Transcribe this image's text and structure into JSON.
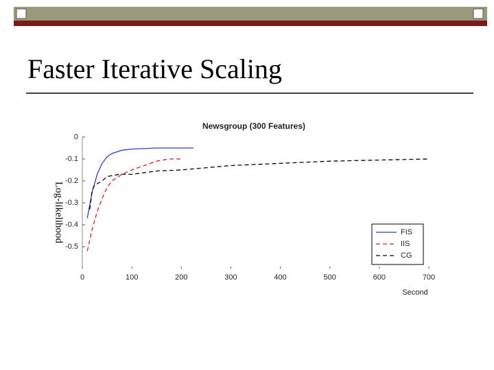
{
  "slide_title": "Faster Iterative Scaling",
  "chart_data": {
    "type": "line",
    "title": "Newsgroup (300 Features)",
    "x_label": "Second",
    "y_label": "Log-likelihood",
    "xlim": [
      0,
      700
    ],
    "xticks": [
      0,
      100,
      200,
      300,
      400,
      500,
      600,
      700
    ],
    "ylim": [
      -0.6,
      0
    ],
    "yticks": [
      0,
      -0.1,
      -0.2,
      -0.3,
      -0.4,
      -0.5
    ],
    "legend": "lower right",
    "series": [
      {
        "name": "FIS",
        "color": "#2a3cc8",
        "style": "solid",
        "x": [
          10,
          20,
          30,
          40,
          50,
          60,
          80,
          100,
          150,
          225
        ],
        "values": [
          -0.37,
          -0.25,
          -0.17,
          -0.12,
          -0.09,
          -0.075,
          -0.06,
          -0.055,
          -0.05,
          -0.05
        ]
      },
      {
        "name": "IIS",
        "color": "#d02020",
        "style": "dashed",
        "x": [
          10,
          20,
          30,
          40,
          50,
          60,
          80,
          100,
          125,
          150,
          175,
          200
        ],
        "values": [
          -0.52,
          -0.42,
          -0.34,
          -0.28,
          -0.23,
          -0.2,
          -0.17,
          -0.15,
          -0.13,
          -0.11,
          -0.1,
          -0.1
        ]
      },
      {
        "name": "CG",
        "color": "#000000",
        "style": "dashed",
        "x": [
          15,
          20,
          25,
          40,
          50,
          75,
          100,
          150,
          200,
          300,
          400,
          500,
          600,
          700
        ],
        "values": [
          -0.33,
          -0.24,
          -0.22,
          -0.2,
          -0.18,
          -0.17,
          -0.17,
          -0.155,
          -0.15,
          -0.13,
          -0.12,
          -0.11,
          -0.105,
          -0.1
        ]
      }
    ]
  }
}
